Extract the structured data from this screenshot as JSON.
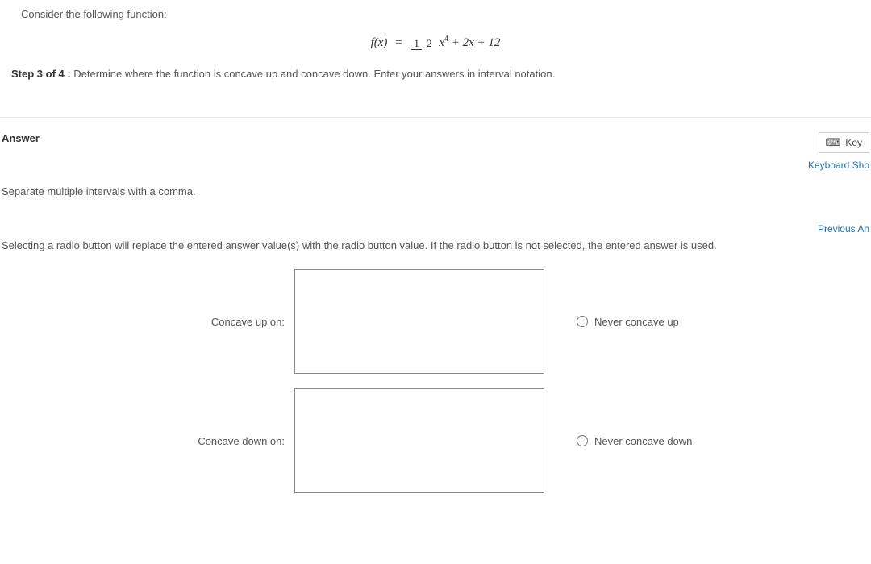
{
  "question": {
    "intro": "Consider the following function:",
    "equation": {
      "lhs": "f(x)",
      "eq": "=",
      "frac_top": "1",
      "frac_bot": "2",
      "x_term": "x",
      "x_exp": "4",
      "rest": " + 2x + 12"
    },
    "step_label": "Step 3 of 4 :",
    "step_text": "  Determine where the function is concave up and concave down. Enter your answers in interval notation."
  },
  "answer": {
    "heading": "Answer",
    "keypad_label": "Key",
    "keyboard_shortcut": "Keyboard Sho",
    "separate_note": "Separate multiple intervals with a comma.",
    "previous_answer": "Previous An",
    "radio_note": "Selecting a radio button will replace the entered answer value(s) with the radio button value. If the radio button is not selected, the entered answer is used.",
    "rows": {
      "concave_up": {
        "label": "Concave up on:",
        "value": "",
        "never_label": "Never concave up"
      },
      "concave_down": {
        "label": "Concave down on:",
        "value": "",
        "never_label": "Never concave down"
      }
    }
  },
  "style": {
    "accent_color": "#1f6fb2",
    "border_color": "#e5e5e5",
    "input_border": "#888888",
    "text_color": "#555555"
  }
}
